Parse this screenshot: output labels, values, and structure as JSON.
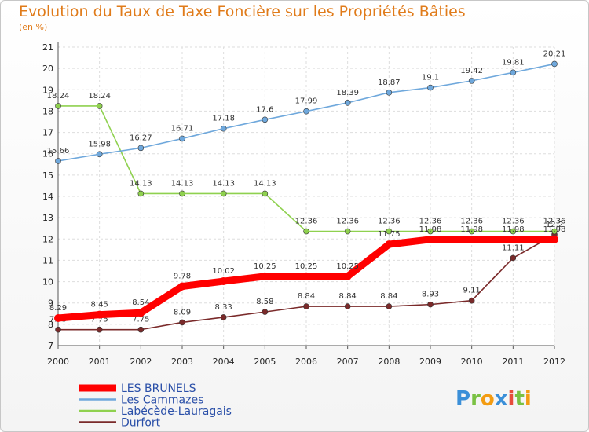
{
  "chart_data": {
    "type": "line",
    "title": "Evolution du Taux de Taxe Foncière sur les Propriétés Bâties",
    "ylabel": "(en %)",
    "categories": [
      "2000",
      "2001",
      "2002",
      "2003",
      "2004",
      "2005",
      "2006",
      "2007",
      "2008",
      "2009",
      "2010",
      "2011",
      "2012"
    ],
    "ylim": [
      7,
      21
    ],
    "yticks": [
      "7",
      "8",
      "9",
      "10",
      "11",
      "12",
      "13",
      "14",
      "15",
      "16",
      "17",
      "18",
      "19",
      "20",
      "21"
    ],
    "series": [
      {
        "name": "Durfort",
        "color": "#7a2a2a",
        "values": [
          7.75,
          7.75,
          7.75,
          8.09,
          8.33,
          8.58,
          8.84,
          8.84,
          8.84,
          8.93,
          9.11,
          11.11,
          12.2
        ],
        "labels": [
          "7.75",
          "7.75",
          "7.75",
          "8.09",
          "8.33",
          "8.58",
          "8.84",
          "8.84",
          "8.84",
          "8.93",
          "9.11",
          "11.11",
          "12.2"
        ]
      },
      {
        "name": "Labécède-Lauragais",
        "color": "#8fd14f",
        "values": [
          18.24,
          18.24,
          14.13,
          14.13,
          14.13,
          14.13,
          12.36,
          12.36,
          12.36,
          12.36,
          12.36,
          12.36,
          12.36
        ],
        "labels": [
          "18.24",
          "18.24",
          "14.13",
          "14.13",
          "14.13",
          "14.13",
          "12.36",
          "12.36",
          "12.36",
          "12.36",
          "12.36",
          "12.36",
          "12.36"
        ]
      },
      {
        "name": "Les Cammazes",
        "color": "#6fa8dc",
        "values": [
          15.66,
          15.98,
          16.27,
          16.71,
          17.18,
          17.6,
          17.99,
          18.39,
          18.87,
          19.1,
          19.42,
          19.81,
          20.21
        ],
        "labels": [
          "15.66",
          "15.98",
          "16.27",
          "16.71",
          "17.18",
          "17.6",
          "17.99",
          "18.39",
          "18.87",
          "19.1",
          "19.42",
          "19.81",
          "20.21"
        ]
      },
      {
        "name": "LES BRUNELS",
        "color": "#ff0000",
        "values": [
          8.29,
          8.45,
          8.54,
          9.78,
          10.02,
          10.25,
          10.25,
          10.25,
          11.75,
          11.98,
          11.98,
          11.98,
          11.98
        ],
        "labels": [
          "8.29",
          "8.45",
          "8.54",
          "9.78",
          "10.02",
          "10.25",
          "10.25",
          "10.25",
          "11.75",
          "11.98",
          "11.98",
          "11.98",
          "11.98"
        ]
      }
    ],
    "legend": [
      "LES BRUNELS",
      "Les Cammazes",
      "Labécède-Lauragais",
      "Durfort"
    ],
    "legend_position": "bottom-left",
    "logo_text": "Proxiti"
  }
}
